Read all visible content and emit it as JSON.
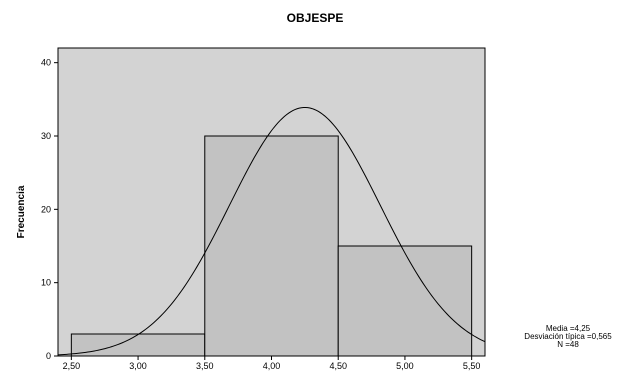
{
  "chart_data": {
    "type": "histogram",
    "title": "OBJESPE",
    "ylabel": "Frecuencia",
    "xlabel": "",
    "xlim": [
      2.4,
      5.6
    ],
    "ylim": [
      0,
      42
    ],
    "x_ticks": [
      {
        "value": 2.5,
        "label": "2,50"
      },
      {
        "value": 3.0,
        "label": "3,00"
      },
      {
        "value": 3.5,
        "label": "3,50"
      },
      {
        "value": 4.0,
        "label": "4,00"
      },
      {
        "value": 4.5,
        "label": "4,50"
      },
      {
        "value": 5.0,
        "label": "5,00"
      },
      {
        "value": 5.5,
        "label": "5,50"
      }
    ],
    "y_ticks": [
      {
        "value": 0,
        "label": "0"
      },
      {
        "value": 10,
        "label": "10"
      },
      {
        "value": 20,
        "label": "20"
      },
      {
        "value": 30,
        "label": "30"
      },
      {
        "value": 40,
        "label": "40"
      }
    ],
    "bins": [
      {
        "start": 2.5,
        "end": 3.5,
        "count": 3
      },
      {
        "start": 3.5,
        "end": 4.5,
        "count": 30
      },
      {
        "start": 4.5,
        "end": 5.5,
        "count": 15
      }
    ],
    "normal_curve": {
      "mean": 4.25,
      "sd": 0.565,
      "n": 48,
      "bin_width": 1.0
    },
    "stats_text": [
      "Media =4,25",
      "Desviación típica =0,565",
      "N =48"
    ],
    "colors": {
      "plot_background": "#d3d3d3",
      "bar_fill": "#c2c2c2",
      "bar_stroke": "#000000",
      "curve": "#000000"
    }
  }
}
